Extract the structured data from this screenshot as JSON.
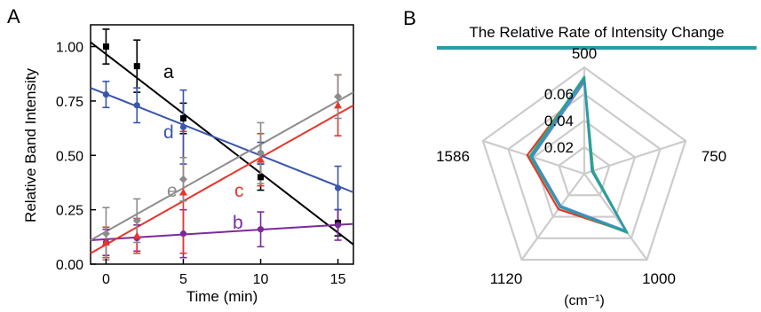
{
  "panel_labels": {
    "a": "A",
    "b": "B"
  },
  "chart_data": [
    {
      "type": "scatter",
      "xlabel": "Time (min)",
      "ylabel": "Relative Band Intensity",
      "xlim": [
        -1,
        16
      ],
      "ylim": [
        0,
        1.1
      ],
      "xticks": [
        {
          "value": 0,
          "label": "0"
        },
        {
          "value": 5,
          "label": "5"
        },
        {
          "value": 10,
          "label": "10"
        },
        {
          "value": 15,
          "label": "15"
        }
      ],
      "yticks": [
        {
          "value": 0,
          "label": "0.00"
        },
        {
          "value": 0.25,
          "label": "0.25"
        },
        {
          "value": 0.5,
          "label": "0.50"
        },
        {
          "value": 0.75,
          "label": "0.75"
        },
        {
          "value": 1.0,
          "label": "1.00"
        }
      ],
      "grid": false,
      "series": [
        {
          "name": "a",
          "color": "#000000",
          "marker": "square",
          "x": [
            0,
            2,
            5,
            10,
            15
          ],
          "y": [
            1.0,
            0.91,
            0.67,
            0.4,
            0.19
          ],
          "err": [
            0.08,
            0.12,
            0.07,
            0.06,
            0.06
          ],
          "fit": {
            "x": [
              -1,
              16
            ],
            "y": [
              1.02,
              0.09
            ]
          }
        },
        {
          "name": "b",
          "color": "#7b2a9a",
          "marker": "circle",
          "x": [
            0,
            2,
            5,
            10,
            15
          ],
          "y": [
            0.1,
            0.12,
            0.14,
            0.16,
            0.18
          ],
          "err": [
            0.06,
            0.06,
            0.11,
            0.08,
            0.07
          ],
          "fit": {
            "x": [
              -1,
              16
            ],
            "y": [
              0.11,
              0.185
            ]
          }
        },
        {
          "name": "c",
          "color": "#e8352a",
          "marker": "triangle",
          "x": [
            0,
            2,
            5,
            10,
            15
          ],
          "y": [
            0.1,
            0.13,
            0.33,
            0.48,
            0.73
          ],
          "err": [
            0.07,
            0.08,
            0.28,
            0.12,
            0.14
          ],
          "fit": {
            "x": [
              -1,
              16
            ],
            "y": [
              0.05,
              0.73
            ]
          }
        },
        {
          "name": "d",
          "color": "#3a56ac",
          "marker": "circle",
          "x": [
            0,
            2,
            5,
            10,
            15
          ],
          "y": [
            0.78,
            0.73,
            0.63,
            0.51,
            0.35
          ],
          "err": [
            0.06,
            0.08,
            0.17,
            0.05,
            0.1
          ],
          "fit": {
            "x": [
              -1,
              16
            ],
            "y": [
              0.81,
              0.33
            ]
          }
        },
        {
          "name": "e",
          "color": "#8c8c8c",
          "marker": "diamond",
          "x": [
            0,
            2,
            5,
            10,
            15
          ],
          "y": [
            0.14,
            0.2,
            0.39,
            0.51,
            0.77
          ],
          "err": [
            0.12,
            0.1,
            0.1,
            0.14,
            0.1
          ],
          "fit": {
            "x": [
              -1,
              16
            ],
            "y": [
              0.11,
              0.79
            ]
          }
        }
      ]
    },
    {
      "type": "radar",
      "title": "The Relative Rate of Intensity Change",
      "title_underline_color": "#2a9aa8",
      "axes": [
        "500",
        "750",
        "1000",
        "1120",
        "1586"
      ],
      "unit_label": "(cm⁻¹)",
      "rmax": 0.08,
      "ring_levels": [
        0.02,
        0.04,
        0.06,
        0.08
      ],
      "ring_labels": [
        {
          "value": 0.02,
          "label": "0.02"
        },
        {
          "value": 0.04,
          "label": "0.04"
        },
        {
          "value": 0.06,
          "label": "0.06"
        }
      ],
      "grid_color": "#cccccc",
      "series": [
        {
          "color": "#e8352a",
          "values": [
            0.071,
            0.007,
            0.054,
            0.033,
            0.045
          ]
        },
        {
          "color": "#2bb36f",
          "values": [
            0.073,
            0.007,
            0.055,
            0.031,
            0.043
          ]
        },
        {
          "color": "#5b86d6",
          "values": [
            0.069,
            0.006,
            0.053,
            0.03,
            0.041
          ]
        },
        {
          "color": "#2a9aa8",
          "values": [
            0.072,
            0.006,
            0.054,
            0.031,
            0.042
          ]
        }
      ]
    }
  ]
}
